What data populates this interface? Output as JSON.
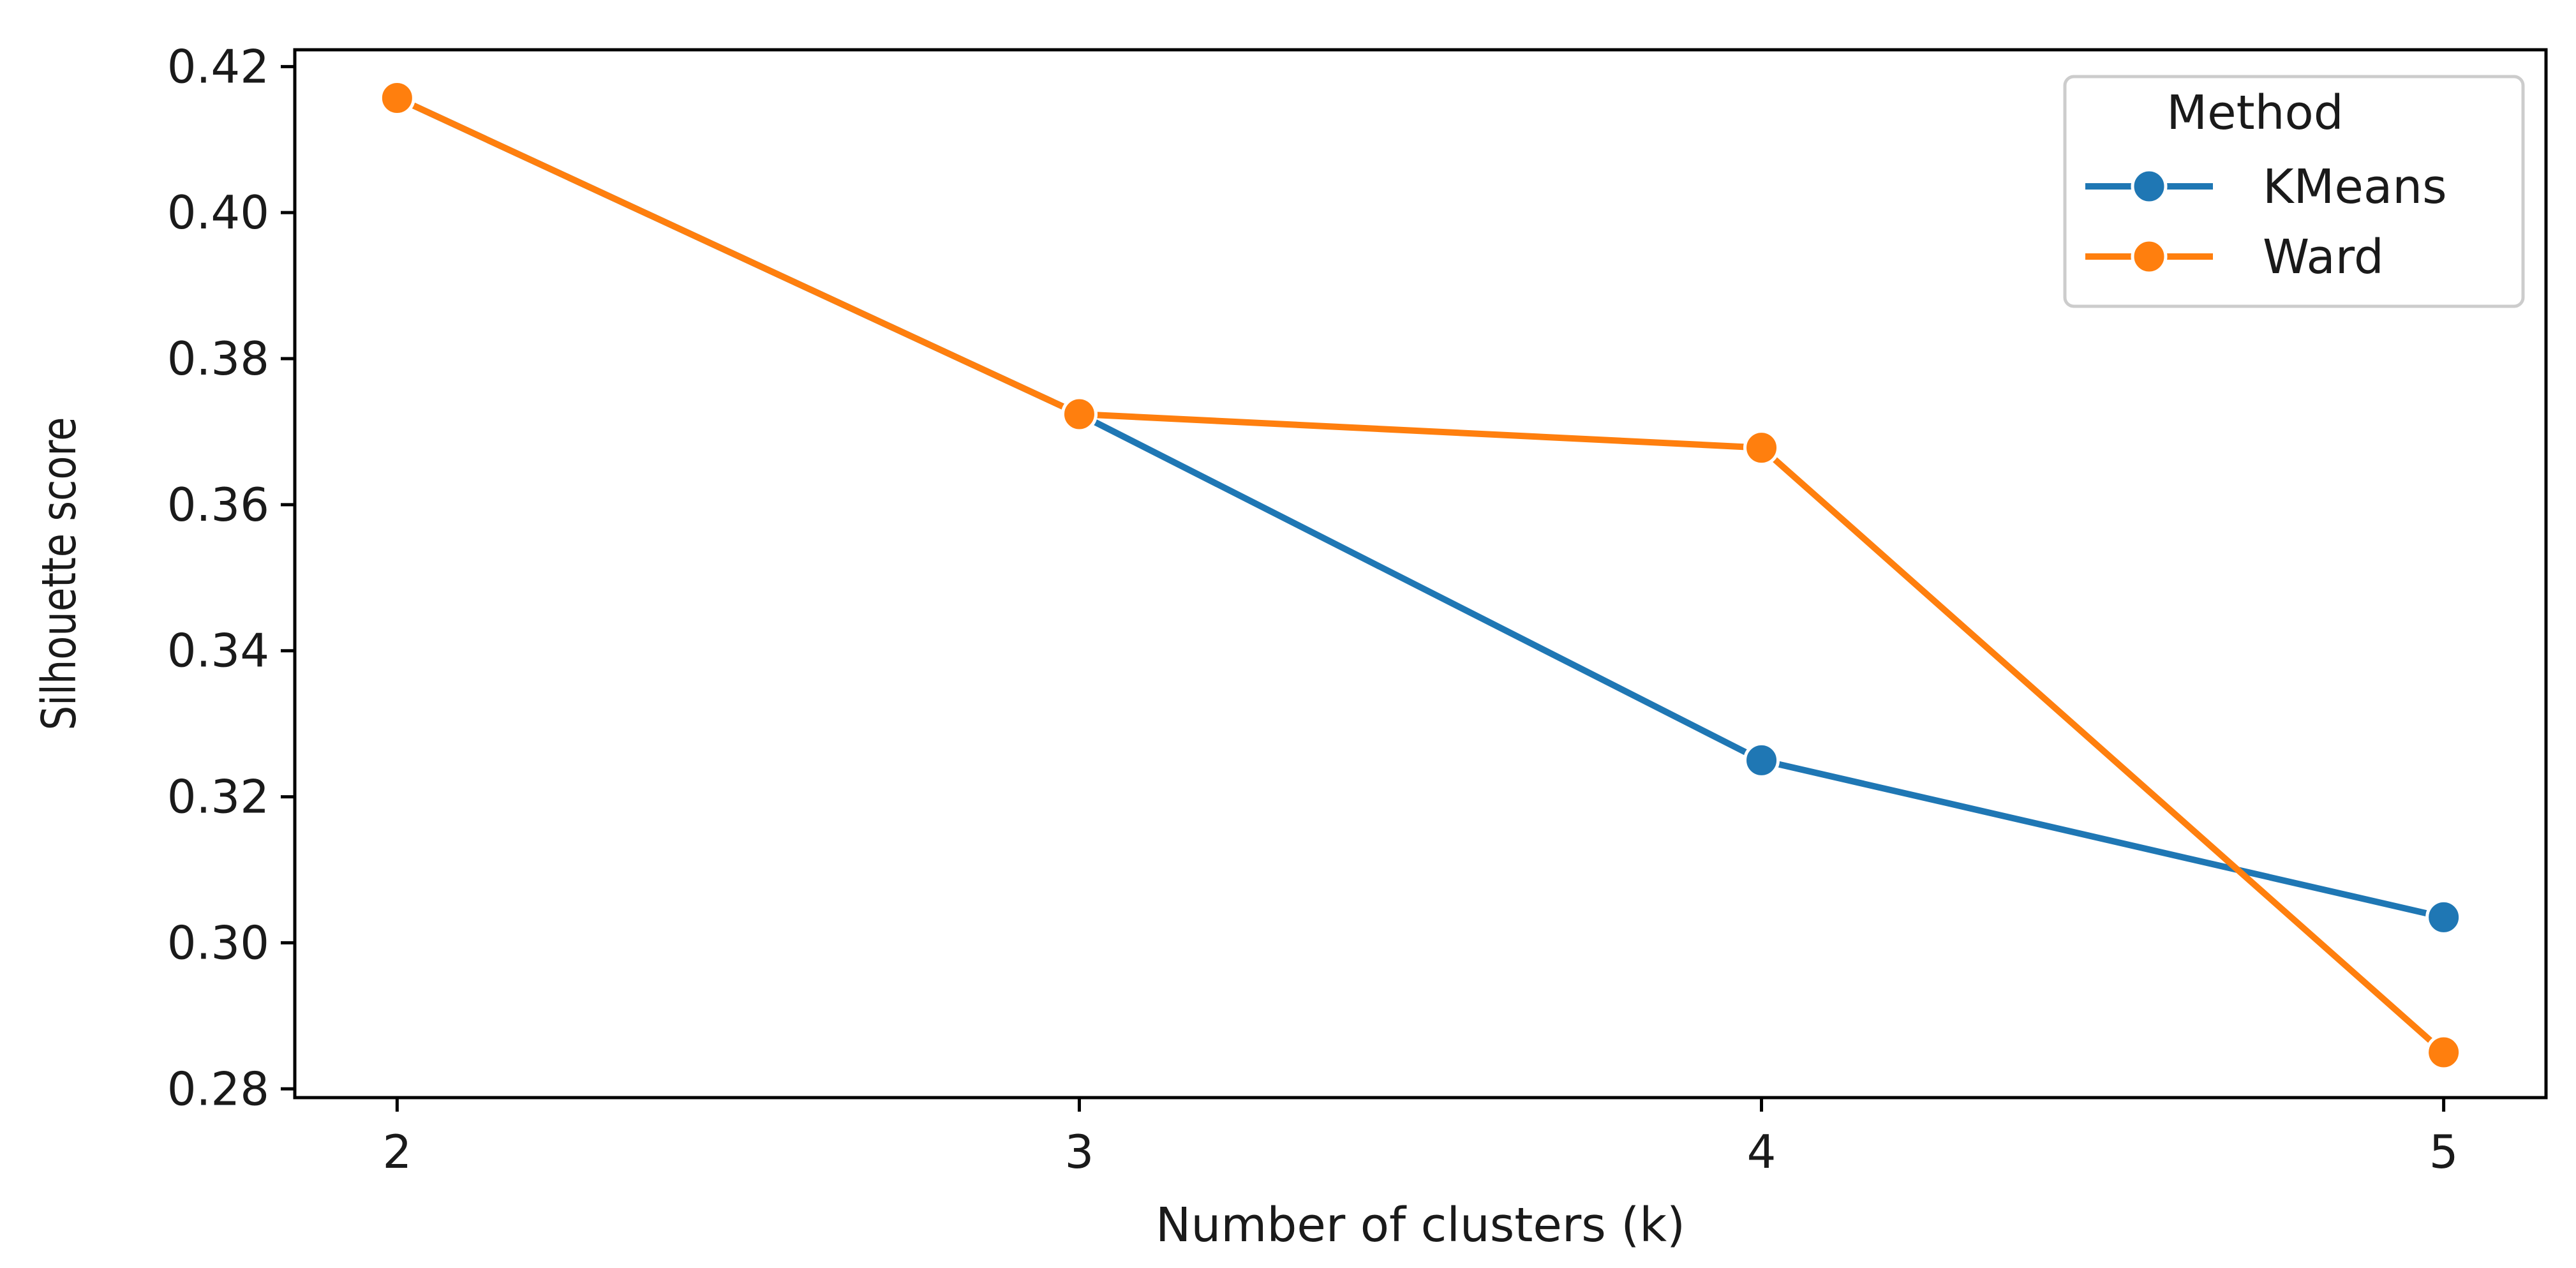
{
  "chart_data": {
    "type": "line",
    "title": "",
    "xlabel": "Number of clusters (k)",
    "ylabel": "Silhouette score",
    "x": [
      2,
      3,
      4,
      5
    ],
    "xticks": [
      "2",
      "3",
      "4",
      "5"
    ],
    "yticks": [
      0.28,
      0.3,
      0.32,
      0.34,
      0.36,
      0.38,
      0.4,
      0.42
    ],
    "ytick_labels": [
      "0.28",
      "0.30",
      "0.32",
      "0.34",
      "0.36",
      "0.38",
      "0.40",
      "0.42"
    ],
    "xlim": [
      1.85,
      5.15
    ],
    "ylim": [
      0.2788,
      0.4223
    ],
    "grid": false,
    "legend": {
      "title": "Method",
      "placement": "top-right"
    },
    "series": [
      {
        "name": "KMeans",
        "color": "#1f77b4",
        "marker": "circle",
        "values": [
          0.4157,
          0.3724,
          0.325,
          0.3035
        ]
      },
      {
        "name": "Ward",
        "color": "#ff7f0e",
        "marker": "circle",
        "values": [
          0.4157,
          0.3724,
          0.3678,
          0.285
        ]
      }
    ]
  }
}
